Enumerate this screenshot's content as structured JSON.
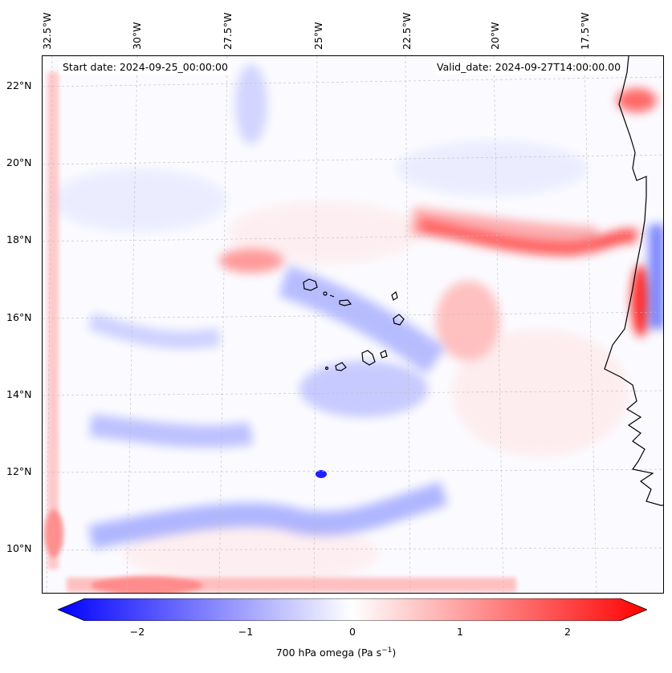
{
  "header": {
    "start_date": "Start date: 2024-09-25_00:00:00",
    "valid_date": "Valid_date: 2024-09-27T14:00:00.00"
  },
  "axes": {
    "lon_labels": [
      "32.5°W",
      "30°W",
      "27.5°W",
      "25°W",
      "22.5°W",
      "20°W",
      "17.5°W"
    ],
    "lat_labels": [
      "22°N",
      "20°N",
      "18°N",
      "16°N",
      "14°N",
      "12°N",
      "10°N"
    ]
  },
  "colorbar": {
    "tick_labels": [
      "−2",
      "−1",
      "0",
      "1",
      "2"
    ],
    "title_prefix": "700 hPa omega (Pa s",
    "title_sup": "−1",
    "title_suffix": ")",
    "vmin": -2.6,
    "vmax": 2.6,
    "cmap": "bwr",
    "color_min": "#0000ff",
    "color_mid": "#ffffff",
    "color_max": "#ff0000"
  },
  "map_features": {
    "ascent_bands_color": "#6f7bff",
    "subsidence_bands_color": "#ff6a6a",
    "coastline_color": "#000000",
    "gridline_color": "#bdbdbd"
  }
}
